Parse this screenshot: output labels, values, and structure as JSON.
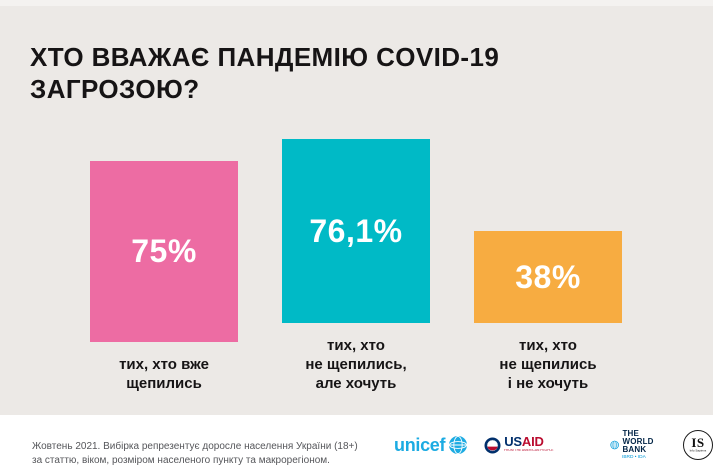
{
  "page": {
    "title": "ХТО ВВАЖАЄ ПАНДЕМІЮ COVID-19\nЗАГРОЗОЮ?"
  },
  "chart_data": {
    "type": "bar",
    "title": "Хто вважає пандемію COVID-19 загрозою?",
    "categories": [
      "тих, хто вже щепились",
      "тих, хто не щепились, але хочуть",
      "тих, хто не щепились і не хочуть"
    ],
    "category_lines": [
      [
        "тих, хто вже",
        "щепились"
      ],
      [
        "тих, хто",
        "не щепились,",
        "але хочуть"
      ],
      [
        "тих, хто",
        "не щепились",
        "і не хочуть"
      ]
    ],
    "values": [
      75,
      76.1,
      38
    ],
    "value_labels": [
      "75%",
      "76,1%",
      "38%"
    ],
    "colors": [
      "#ED6CA3",
      "#00BAC6",
      "#F7AC41"
    ],
    "xlabel": "",
    "ylabel": "",
    "ylim": [
      0,
      80
    ],
    "grid": false,
    "legend": false
  },
  "footer": {
    "note": "Жовтень 2021. Вибірка репрезентує доросле населення України (18+)\nза статтю, віком, розміром населеного пункту та макрорегіоном.",
    "logos": {
      "unicef": {
        "text": "unicef"
      },
      "usaid": {
        "us": "US",
        "aid": "AID",
        "tagline": "FROM THE AMERICAN PEOPLE"
      },
      "worldbank": {
        "text": "THE WORLD BANK",
        "subtext": "IBRD • IDA"
      },
      "infosapiens": {
        "text": "IS",
        "subtext": "Info Sapiens"
      }
    }
  },
  "colors": {
    "background": "#ECE9E6",
    "footer_bg": "#FFFFFF",
    "title": "#161415",
    "note": "#55565A",
    "bar_pink": "#ED6CA3",
    "bar_teal": "#00BAC6",
    "bar_orange": "#F7AC41",
    "unicef_blue": "#1CABE2",
    "usaid_navy": "#002F6C",
    "usaid_red": "#BA0C2F",
    "worldbank_navy": "#002345",
    "worldbank_blue": "#0099D8"
  }
}
